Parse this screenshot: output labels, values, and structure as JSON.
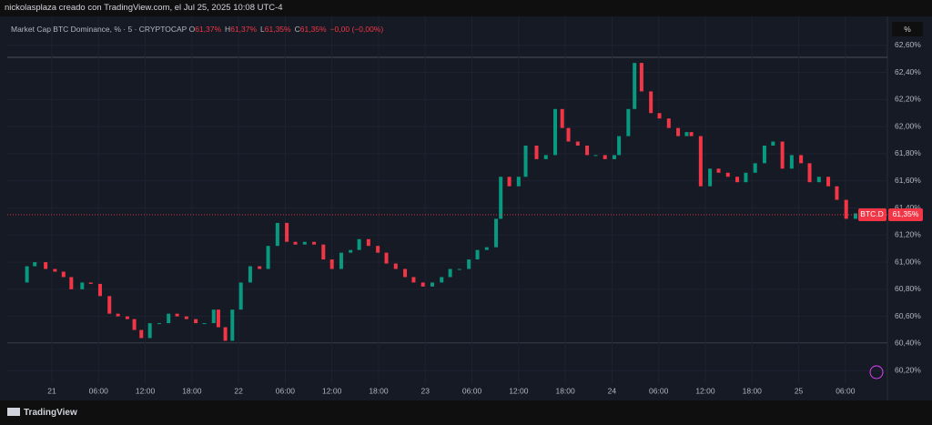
{
  "caption": "nickolasplaza creado con TradingView.com, el Jul 25, 2025 10:08 UTC-4",
  "footer": "TradingView",
  "scale_button": "%",
  "chart_data": {
    "type": "candlestick",
    "title": "Market Cap BTC Dominance, % · 5 · CRYPTOCAP",
    "ohlc": [
      {
        "label": "O",
        "value": "61,37%"
      },
      {
        "label": "H",
        "value": "61,37%"
      },
      {
        "label": "L",
        "value": "61,35%"
      },
      {
        "label": "C",
        "value": "61,35%"
      }
    ],
    "change": "−0,00 (−0,00%)",
    "last_label": {
      "symbol": "BTC.D",
      "price": "61,35%",
      "value": 61.35
    },
    "up_color": "#089981",
    "down_color": "#f23645",
    "grid": true,
    "xlim": [
      -5.73,
      107.4
    ],
    "ylim": [
      59.98,
      62.8
    ],
    "xticks": [
      {
        "value": 0,
        "label": "21"
      },
      {
        "value": 6,
        "label": "06:00"
      },
      {
        "value": 12,
        "label": "12:00"
      },
      {
        "value": 18,
        "label": "18:00"
      },
      {
        "value": 24,
        "label": "22"
      },
      {
        "value": 30,
        "label": "06:00"
      },
      {
        "value": 36,
        "label": "12:00"
      },
      {
        "value": 42,
        "label": "18:00"
      },
      {
        "value": 48,
        "label": "23"
      },
      {
        "value": 54,
        "label": "06:00"
      },
      {
        "value": 60,
        "label": "12:00"
      },
      {
        "value": 66,
        "label": "18:00"
      },
      {
        "value": 72,
        "label": "24"
      },
      {
        "value": 78,
        "label": "06:00"
      },
      {
        "value": 84,
        "label": "12:00"
      },
      {
        "value": 90,
        "label": "18:00"
      },
      {
        "value": 96,
        "label": "25"
      },
      {
        "value": 102,
        "label": "06:00"
      }
    ],
    "yticks": [
      {
        "value": 60.2,
        "label": "60,20%"
      },
      {
        "value": 60.4,
        "label": "60,40%"
      },
      {
        "value": 60.6,
        "label": "60,60%"
      },
      {
        "value": 60.8,
        "label": "60,80%"
      },
      {
        "value": 61.0,
        "label": "61,00%"
      },
      {
        "value": 61.2,
        "label": "61,20%"
      },
      {
        "value": 61.4,
        "label": "61,40%"
      },
      {
        "value": 61.6,
        "label": "61,60%"
      },
      {
        "value": 61.8,
        "label": "61,80%"
      },
      {
        "value": 62.0,
        "label": "62,00%"
      },
      {
        "value": 62.2,
        "label": "62,20%"
      },
      {
        "value": 62.4,
        "label": "62,40%"
      },
      {
        "value": 62.6,
        "label": "62,60%"
      }
    ],
    "x": [
      -4.1,
      -3.2,
      -2.2,
      -0.8,
      0.4,
      1.5,
      2.5,
      3.9,
      5.0,
      6.2,
      7.4,
      8.5,
      9.7,
      10.6,
      11.5,
      12.6,
      13.8,
      15.0,
      16.1,
      17.3,
      18.5,
      19.6,
      20.8,
      21.4,
      22.3,
      23.2,
      24.3,
      25.5,
      26.7,
      27.8,
      29.0,
      30.2,
      31.3,
      32.5,
      33.7,
      34.9,
      36.0,
      37.2,
      38.4,
      39.5,
      40.7,
      41.9,
      43.0,
      44.2,
      45.4,
      46.5,
      47.7,
      48.9,
      50.1,
      51.2,
      52.4,
      53.6,
      54.7,
      55.9,
      57.1,
      57.7,
      58.8,
      60.0,
      60.9,
      62.3,
      63.5,
      64.7,
      65.6,
      66.4,
      67.6,
      68.8,
      69.9,
      71.1,
      72.3,
      72.9,
      74.1,
      74.9,
      75.8,
      77.0,
      78.1,
      79.3,
      80.5,
      81.6,
      82.2,
      83.4,
      84.6,
      85.7,
      86.9,
      88.1,
      89.2,
      90.4,
      91.6,
      92.7,
      93.9,
      95.1,
      96.3,
      97.4,
      98.6,
      99.8,
      100.9,
      102.1,
      103.3,
      104.4
    ],
    "series": [
      {
        "name": "BTC.D",
        "values": [
          60.85,
          60.97,
          61.0,
          60.95,
          60.93,
          60.89,
          60.8,
          60.85,
          60.84,
          60.75,
          60.62,
          60.6,
          60.58,
          60.5,
          60.44,
          60.55,
          60.55,
          60.62,
          60.6,
          60.58,
          60.55,
          60.55,
          60.65,
          60.52,
          60.42,
          60.65,
          60.85,
          60.97,
          60.95,
          61.12,
          61.29,
          61.15,
          61.13,
          61.15,
          61.13,
          61.02,
          60.95,
          61.07,
          61.09,
          61.17,
          61.12,
          61.07,
          60.99,
          60.95,
          60.89,
          60.85,
          60.82,
          60.85,
          60.89,
          60.95,
          60.95,
          61.02,
          61.09,
          61.11,
          61.32,
          61.63,
          61.56,
          61.63,
          61.86,
          61.76,
          61.79,
          62.13,
          61.99,
          61.89,
          61.86,
          61.79,
          61.79,
          61.76,
          61.79,
          61.93,
          62.13,
          62.47,
          62.26,
          62.1,
          62.06,
          61.99,
          61.93,
          61.96,
          61.93,
          61.56,
          61.69,
          61.66,
          61.63,
          61.59,
          61.66,
          61.73,
          61.86,
          61.89,
          61.69,
          61.79,
          61.73,
          61.59,
          61.63,
          61.56,
          61.46,
          61.32,
          61.36,
          61.34
        ]
      }
    ]
  }
}
